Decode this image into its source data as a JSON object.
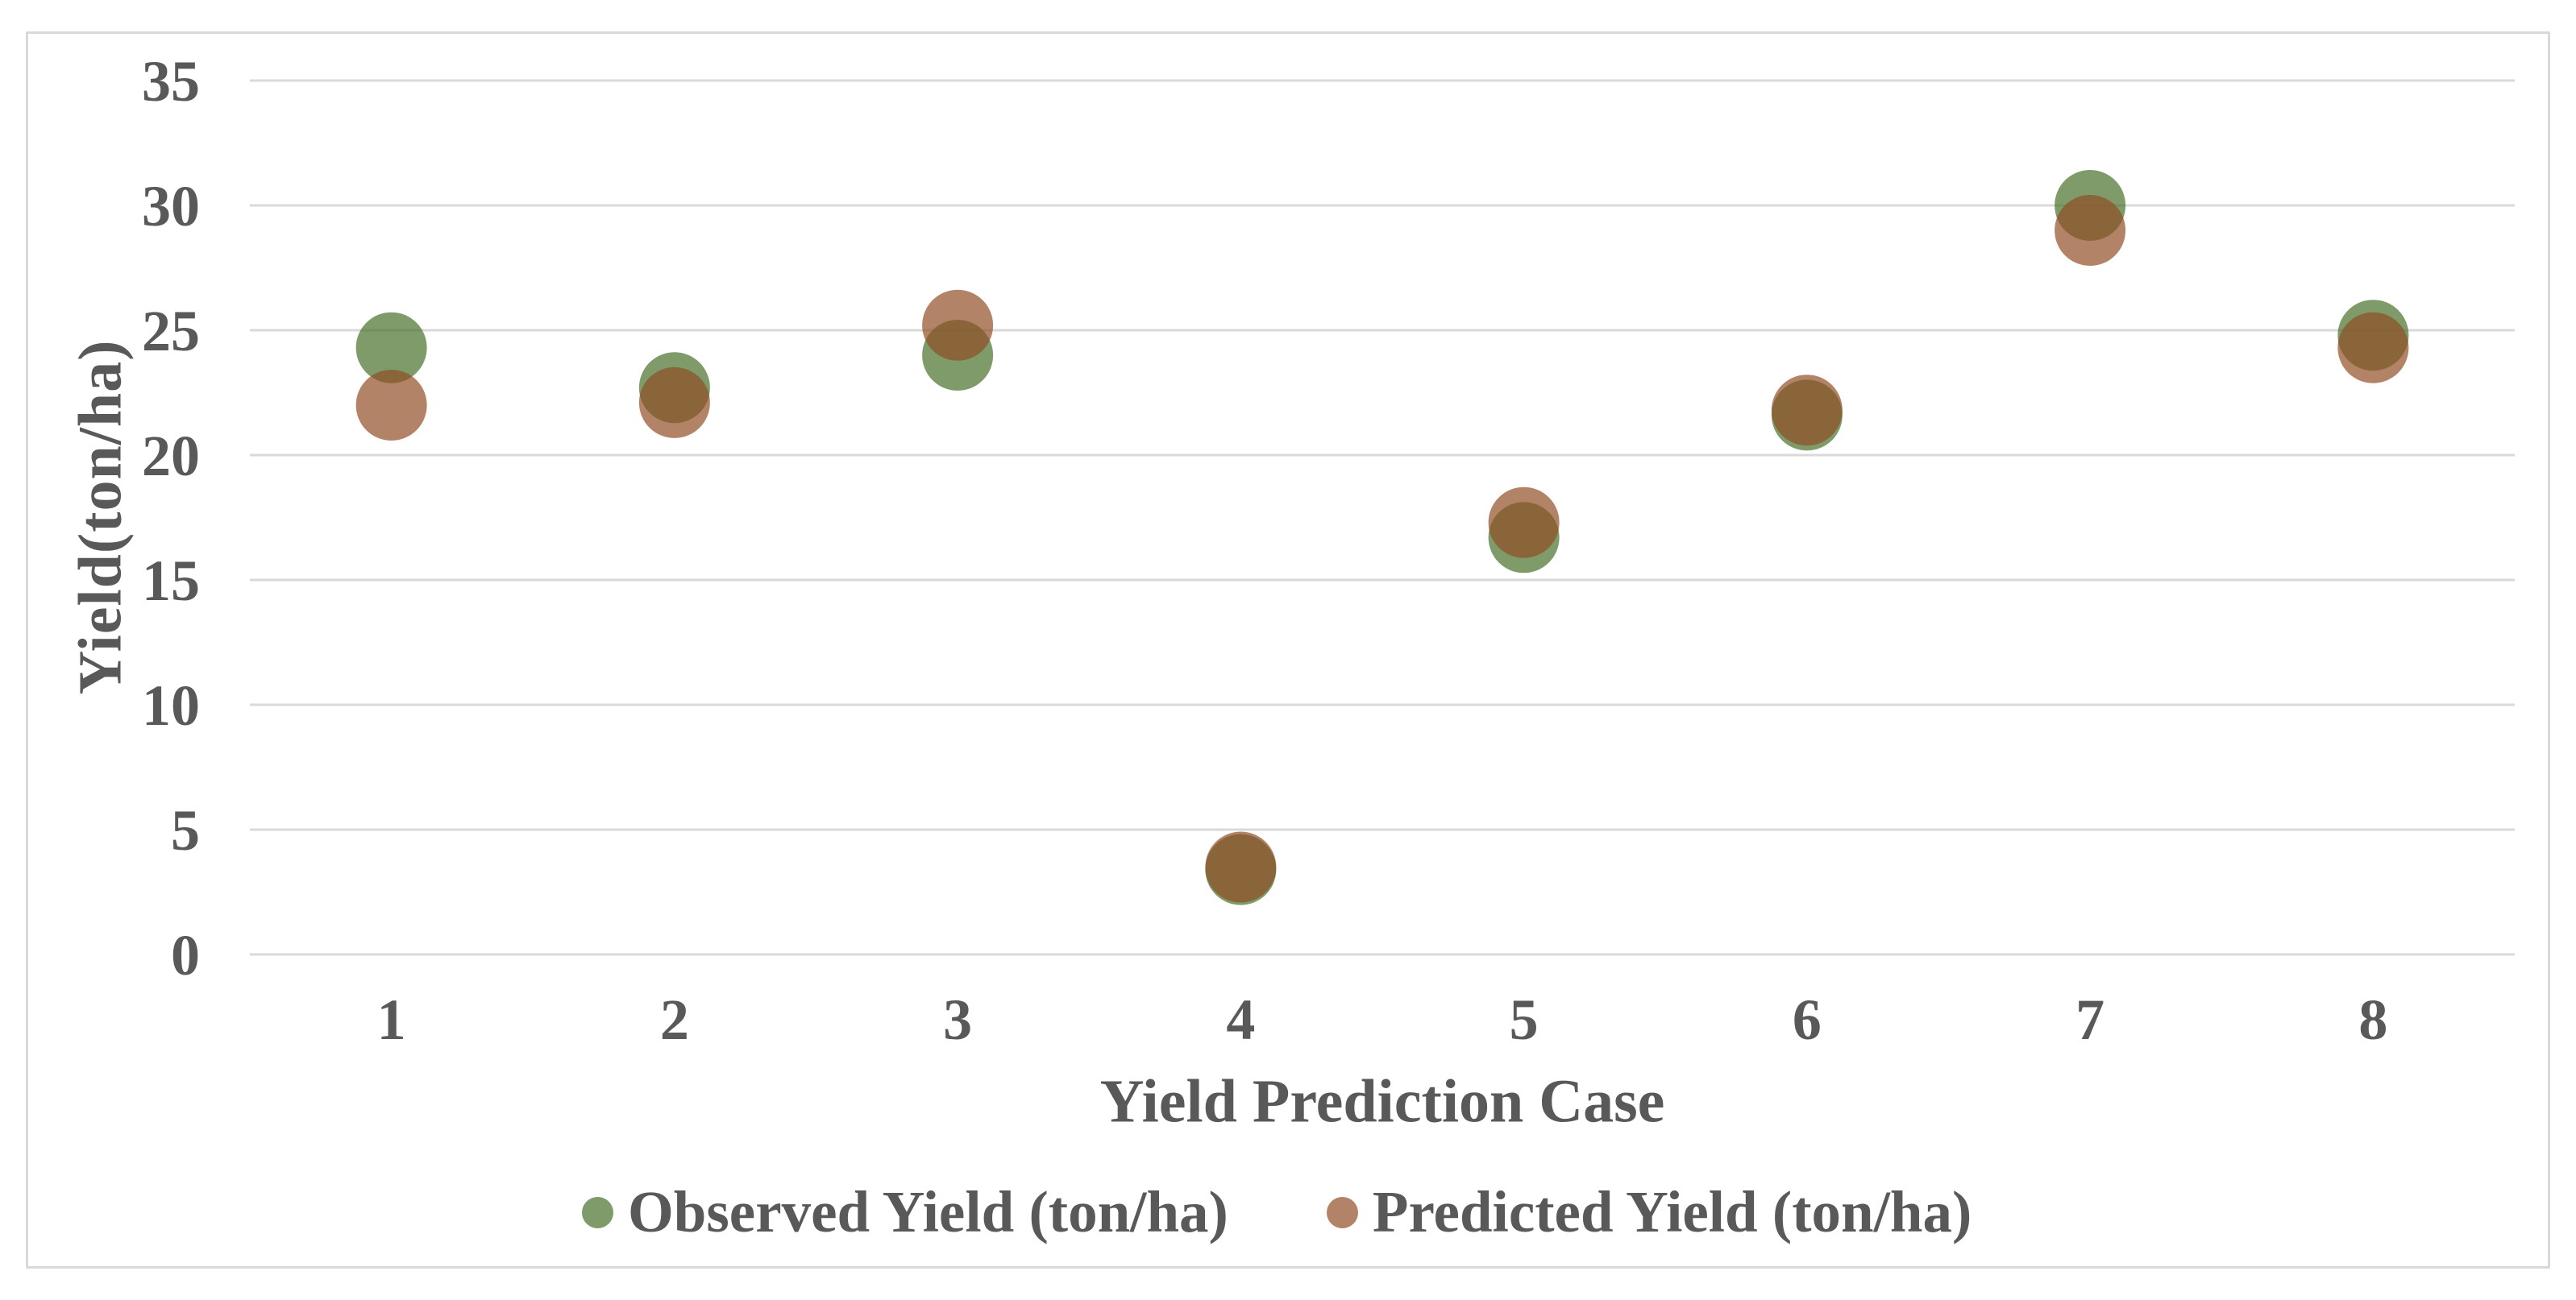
{
  "chart_data": {
    "type": "scatter",
    "title": "",
    "xlabel": "Yield Prediction Case",
    "ylabel": "Yield(ton/ha)",
    "x": [
      "1",
      "2",
      "3",
      "4",
      "5",
      "6",
      "7",
      "8"
    ],
    "yticks": [
      35,
      30,
      25,
      20,
      15,
      10,
      5,
      0
    ],
    "ylim": [
      0,
      35
    ],
    "grid": "horizontal",
    "legend_position": "bottom-center",
    "series": [
      {
        "name": "Observed Yield (ton/ha)",
        "marker": "circle",
        "color_visible": "#7E9B69",
        "fill": "rgba(71,112,41,0.7)",
        "values": [
          24.3,
          22.7,
          24.0,
          3.4,
          16.7,
          21.6,
          30.0,
          24.8
        ]
      },
      {
        "name": "Predicted Yield (ton/ha)",
        "marker": "circle",
        "color_visible": "#B28367",
        "fill": "rgba(145,78,38,0.7)",
        "values": [
          22.0,
          22.1,
          25.2,
          3.5,
          17.3,
          21.8,
          29.0,
          24.3
        ]
      }
    ],
    "colors": {
      "gridline": "#D9D9D9",
      "chart_border": "#D9D9D9",
      "text": "#595959",
      "overlap_blend": "#8B653A",
      "background": "#FFFFFF"
    }
  }
}
